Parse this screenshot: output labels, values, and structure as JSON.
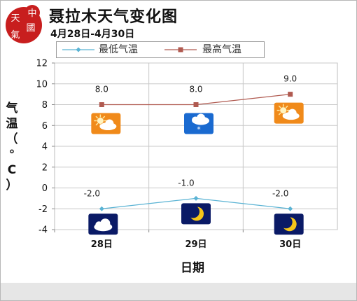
{
  "header": {
    "title": "聂拉木天气变化图",
    "subtitle": "4月28日-4月30日",
    "logo_text": "中國天氣"
  },
  "legend": {
    "low_label": "最低气温",
    "high_label": "最高气温"
  },
  "colors": {
    "low": "#5ab3d4",
    "high": "#b05a50",
    "day_icon_bg": "#f08a1a",
    "night_icon_bg": "#0a1a66",
    "snow_icon_bg": "#1a6ad0",
    "logo_red": "#c81e1e"
  },
  "chart_data": {
    "type": "line",
    "categories": [
      "28日",
      "29日",
      "30日"
    ],
    "series": [
      {
        "name": "最低气温",
        "values": [
          -2.0,
          -1.0,
          -2.0
        ],
        "labels": [
          "-2.0",
          "-1.0",
          "-2.0"
        ]
      },
      {
        "name": "最高气温",
        "values": [
          8.0,
          8.0,
          9.0
        ],
        "labels": [
          "8.0",
          "8.0",
          "9.0"
        ]
      }
    ],
    "day_icons": [
      "partly-cloudy-icon",
      "snow-icon",
      "partly-cloudy-icon"
    ],
    "night_icons": [
      "cloudy-night-icon",
      "crescent-moon-icon",
      "crescent-moon-icon"
    ],
    "xlabel": "日期",
    "ylabel": "气温（°C）",
    "ylim": [
      -4,
      12
    ],
    "yticks": [
      -4,
      -2,
      0,
      2,
      4,
      6,
      8,
      10,
      12
    ],
    "grid": true,
    "legend_position": "top-left"
  }
}
